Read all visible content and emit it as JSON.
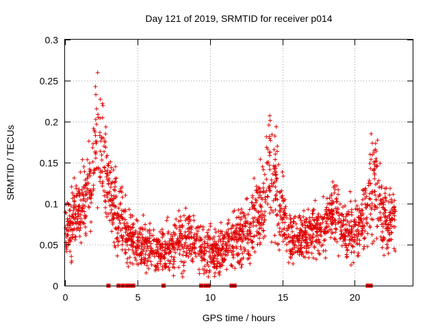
{
  "chart_data": {
    "type": "scatter",
    "title": "Day 121 of 2019, SRMTID for receiver p014",
    "xlabel": "GPS time / hours",
    "ylabel": "SRMTID / TECUs",
    "xlim": [
      0,
      24
    ],
    "ylim": [
      0,
      0.3
    ],
    "xticks": [
      0,
      5,
      10,
      15,
      20
    ],
    "xtick_labels": [
      "0",
      "5",
      "10",
      "15",
      "20"
    ],
    "yticks": [
      0,
      0.05,
      0.1,
      0.15,
      0.2,
      0.25,
      0.3
    ],
    "ytick_labels": [
      "0",
      "0.05",
      "0.1",
      "0.15",
      "0.2",
      "0.25",
      "0.3"
    ],
    "grid": true,
    "marker": "+",
    "color": "#e00000",
    "envelope": [
      {
        "t": 0.0,
        "mean": 0.06,
        "spread": 0.03
      },
      {
        "t": 0.5,
        "mean": 0.08,
        "spread": 0.04
      },
      {
        "t": 1.0,
        "mean": 0.09,
        "spread": 0.04
      },
      {
        "t": 1.5,
        "mean": 0.11,
        "spread": 0.05
      },
      {
        "t": 2.0,
        "mean": 0.15,
        "spread": 0.06
      },
      {
        "t": 2.3,
        "mean": 0.19,
        "spread": 0.09
      },
      {
        "t": 2.7,
        "mean": 0.15,
        "spread": 0.06
      },
      {
        "t": 3.2,
        "mean": 0.1,
        "spread": 0.05
      },
      {
        "t": 3.8,
        "mean": 0.08,
        "spread": 0.04
      },
      {
        "t": 4.5,
        "mean": 0.055,
        "spread": 0.03
      },
      {
        "t": 5.5,
        "mean": 0.05,
        "spread": 0.03
      },
      {
        "t": 6.5,
        "mean": 0.04,
        "spread": 0.025
      },
      {
        "t": 7.5,
        "mean": 0.05,
        "spread": 0.03
      },
      {
        "t": 8.5,
        "mean": 0.06,
        "spread": 0.035
      },
      {
        "t": 9.5,
        "mean": 0.045,
        "spread": 0.03
      },
      {
        "t": 10.5,
        "mean": 0.04,
        "spread": 0.025
      },
      {
        "t": 11.5,
        "mean": 0.055,
        "spread": 0.03
      },
      {
        "t": 12.5,
        "mean": 0.065,
        "spread": 0.035
      },
      {
        "t": 13.5,
        "mean": 0.09,
        "spread": 0.05
      },
      {
        "t": 14.2,
        "mean": 0.15,
        "spread": 0.08
      },
      {
        "t": 14.8,
        "mean": 0.1,
        "spread": 0.05
      },
      {
        "t": 15.5,
        "mean": 0.06,
        "spread": 0.03
      },
      {
        "t": 16.5,
        "mean": 0.06,
        "spread": 0.03
      },
      {
        "t": 17.5,
        "mean": 0.07,
        "spread": 0.035
      },
      {
        "t": 18.5,
        "mean": 0.09,
        "spread": 0.04
      },
      {
        "t": 19.5,
        "mean": 0.065,
        "spread": 0.035
      },
      {
        "t": 20.5,
        "mean": 0.075,
        "spread": 0.035
      },
      {
        "t": 21.3,
        "mean": 0.13,
        "spread": 0.07
      },
      {
        "t": 22.0,
        "mean": 0.08,
        "spread": 0.04
      },
      {
        "t": 22.8,
        "mean": 0.075,
        "spread": 0.03
      }
    ],
    "zero_points_hours": [
      3.0,
      3.7,
      4.0,
      4.3,
      4.5,
      4.7,
      6.8,
      9.4,
      9.7,
      9.9,
      11.5,
      11.7,
      20.9,
      21.0,
      21.1
    ]
  }
}
